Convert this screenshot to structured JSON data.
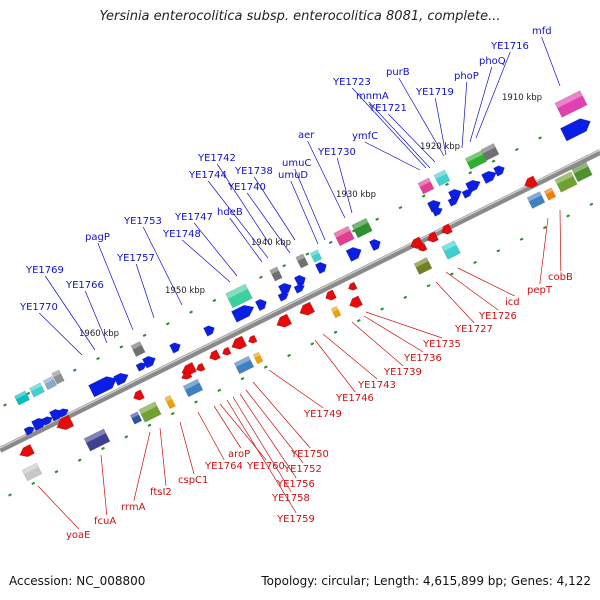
{
  "title": "Yersinia enterocolitica subsp. enterocolitica 8081, complete...",
  "footer": {
    "accession": "Accession: NC_008800",
    "summary": "Topology: circular; Length: 4,615,899 bp; Genes: 4,122"
  },
  "kbp_labels": [
    "1910 kbp",
    "1920 kbp",
    "1930 kbp",
    "1940 kbp",
    "1950 kbp",
    "1960 kbp"
  ],
  "colors": {
    "forward_strand_label": "#1010cc",
    "reverse_strand_label": "#cc1010",
    "forward_gene": "#0a1ee6",
    "reverse_gene": "#e60a0a",
    "backbone": "#8a8a8a",
    "tick": "#2a8a2a"
  },
  "forward_labels": [
    "mfd",
    "YE1716",
    "phoQ",
    "phoP",
    "purB",
    "YE1719",
    "mnmA",
    "YE1721",
    "YE1723",
    "ymfC",
    "aer",
    "YE1730",
    "umuC",
    "umuD",
    "YE1738",
    "YE1740",
    "YE1742",
    "YE1744",
    "hdeB",
    "YE1747",
    "YE1748",
    "YE1753",
    "YE1757",
    "pagP",
    "YE1766",
    "YE1769",
    "YE1770"
  ],
  "reverse_labels": [
    "cobB",
    "pepT",
    "icd",
    "YE1726",
    "YE1727",
    "YE1735",
    "YE1736",
    "YE1739",
    "YE1743",
    "YE1746",
    "YE1749",
    "YE1750",
    "YE1752",
    "YE1756",
    "YE1758",
    "YE1759",
    "YE1760",
    "aroP",
    "YE1764",
    "cspC1",
    "ftsI2",
    "rrmA",
    "fcuA",
    "yoaE"
  ]
}
